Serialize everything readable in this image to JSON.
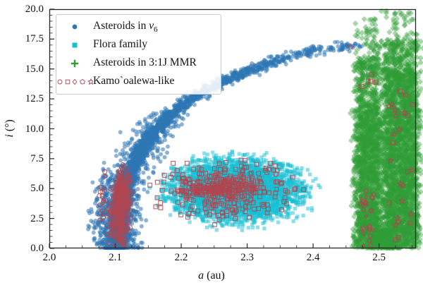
{
  "chart_data": {
    "type": "scatter",
    "title": "",
    "xlabel": {
      "italic": "a",
      "rest": " (au)"
    },
    "ylabel": {
      "italic": "i",
      "rest": " (°)"
    },
    "xlim": [
      2.0,
      2.556
    ],
    "ylim": [
      0,
      20
    ],
    "grid": false,
    "xticks": {
      "values": [
        2.0,
        2.1,
        2.2,
        2.3,
        2.4,
        2.5
      ],
      "labels": [
        "2.0",
        "2.1",
        "2.2",
        "2.3",
        "2.4",
        "2.5"
      ],
      "minor_step": 0.025
    },
    "yticks": {
      "values": [
        0,
        2.5,
        5,
        7.5,
        10,
        12.5,
        15,
        17.5,
        20
      ],
      "labels": [
        "0.0",
        "2.5",
        "5.0",
        "7.5",
        "10.0",
        "12.5",
        "15.0",
        "17.5",
        "20.0"
      ],
      "minor_step": 0.5
    },
    "legend": {
      "position": "upper left",
      "items": [
        {
          "label": "Asteroids in ν6",
          "label_pre": "Asteroids in ",
          "label_symbol": "ν",
          "label_sub": "6",
          "marker": "circle",
          "color": "#2e76b4"
        },
        {
          "label": "Flora family",
          "label_pre": "Flora family",
          "label_symbol": "",
          "label_sub": "",
          "marker": "square",
          "color": "#17bfd4"
        },
        {
          "label": "Asteroids in 3:1J MMR",
          "label_pre": "Asteroids in 3:1J MMR",
          "label_symbol": "",
          "label_sub": "",
          "marker": "plus",
          "color": "#2f9d38"
        },
        {
          "label": "Kamo`oalewa-like",
          "label_pre": "Kamo`oalewa-like",
          "label_symbol": "",
          "label_sub": "",
          "marker": "open-set",
          "color": "#b04550"
        }
      ]
    },
    "series": [
      {
        "name": "Asteroids in ν6",
        "marker": "circle",
        "color": "#2e76b4",
        "alpha": 0.55,
        "size": 3.0,
        "curve_i_a": [
          [
            0,
            2.104
          ],
          [
            2,
            2.107
          ],
          [
            4,
            2.112
          ],
          [
            5,
            2.116
          ],
          [
            6,
            2.121
          ],
          [
            7,
            2.128
          ],
          [
            8,
            2.137
          ],
          [
            9,
            2.149
          ],
          [
            10,
            2.163
          ],
          [
            11,
            2.181
          ],
          [
            12,
            2.203
          ],
          [
            12.5,
            2.216
          ],
          [
            13,
            2.231
          ],
          [
            13.5,
            2.248
          ],
          [
            14,
            2.266
          ],
          [
            14.5,
            2.287
          ],
          [
            15,
            2.31
          ],
          [
            15.5,
            2.336
          ],
          [
            16,
            2.366
          ],
          [
            16.4,
            2.398
          ],
          [
            16.7,
            2.43
          ],
          [
            16.9,
            2.455
          ],
          [
            17,
            2.472
          ]
        ],
        "components": [
          {
            "kind": "curve_band",
            "n": 2400,
            "i0": 0,
            "i1": 17,
            "pow": 1.3,
            "sa": 0.005,
            "si": 0.22
          },
          {
            "kind": "curve_band",
            "n": 750,
            "i0": 0,
            "i1": 11,
            "pow": 1.25,
            "sa": 0.015,
            "si": 0.55
          },
          {
            "kind": "blob",
            "n": 380,
            "cx": 2.096,
            "cy": 2.9,
            "sx": 0.018,
            "sy": 2.0,
            "clip": 2.2
          }
        ]
      },
      {
        "name": "Flora family",
        "marker": "square",
        "color": "#17bfd4",
        "alpha": 0.5,
        "size": 5.2,
        "components": [
          {
            "kind": "blob",
            "n": 3000,
            "cx": 2.283,
            "cy": 4.9,
            "sx": 0.052,
            "sy": 1.35,
            "clip": 2.2
          },
          {
            "kind": "blob",
            "n": 600,
            "cx": 2.283,
            "cy": 4.8,
            "sx": 0.066,
            "sy": 1.7,
            "clip": 2.0
          }
        ]
      },
      {
        "name": "Asteroids in 3:1J MMR",
        "marker": "plus",
        "color": "#2f9d38",
        "alpha": 0.42,
        "size": 7,
        "components": [
          {
            "kind": "vband",
            "n": 1900,
            "a0": 2.466,
            "a1": 2.501,
            "edge": 0.005,
            "zones": [
              [
                0,
                12,
                1.0
              ],
              [
                12,
                16,
                0.5
              ],
              [
                16,
                19.3,
                0.12
              ]
            ]
          },
          {
            "kind": "vband",
            "n": 2950,
            "a0": 2.508,
            "a1": 2.556,
            "edge": 0.005,
            "zones": [
              [
                0,
                15,
                1.0
              ],
              [
                15,
                17.5,
                0.5
              ],
              [
                17.5,
                19.9,
                0.13
              ]
            ]
          },
          {
            "kind": "uniform",
            "n": 220,
            "a0": 2.49,
            "a1": 2.52,
            "i0": 0,
            "i1": 1.6
          }
        ]
      },
      {
        "name": "Kamo`oalewa-like",
        "marker": "open",
        "color": "#b04550",
        "alpha": 0.85,
        "size": 3.0,
        "line_width": 1.1,
        "components": [
          {
            "kind": "blob",
            "n": 170,
            "cx": 2.107,
            "cy": 2.9,
            "sx": 0.008,
            "sy": 1.4,
            "clip": 2.2,
            "marker": "ocircle"
          },
          {
            "kind": "blob",
            "n": 130,
            "cx": 2.112,
            "cy": 4.8,
            "sx": 0.0065,
            "sy": 1.1,
            "clip": 2.2,
            "marker": "ocircle"
          },
          {
            "kind": "blob",
            "n": 70,
            "cx": 2.099,
            "cy": 3.2,
            "sx": 0.014,
            "sy": 1.9,
            "clip": 2.0,
            "marker": "ocircle"
          },
          {
            "kind": "blob",
            "n": 300,
            "cx": 2.268,
            "cy": 5.0,
            "sx": 0.047,
            "sy": 1.2,
            "clip": 2.6,
            "marker": "osquare"
          },
          {
            "kind": "blob",
            "n": 130,
            "cx": 2.252,
            "cy": 4.95,
            "sx": 0.03,
            "sy": 0.3,
            "clip": 2.4,
            "marker": "osquare"
          },
          {
            "kind": "blob",
            "n": 28,
            "cx": 2.481,
            "cy": 2.8,
            "sx": 0.006,
            "sy": 1.4,
            "clip": 2.2,
            "markers": [
              "odiamond",
              "ocircle",
              "opentagon"
            ]
          },
          {
            "kind": "uniform",
            "n": 26,
            "a0": 2.512,
            "a1": 2.553,
            "i0": 0.3,
            "i1": 13,
            "markers": [
              "osquare",
              "ostar"
            ]
          },
          {
            "kind": "uniform",
            "n": 6,
            "a0": 2.47,
            "a1": 2.55,
            "i0": 13,
            "i1": 16.5,
            "markers": [
              "ostar",
              "osquare"
            ]
          },
          {
            "kind": "points",
            "marker": "opentagon",
            "pts": [
              [
                2.457,
                16.85
              ]
            ]
          }
        ]
      }
    ]
  }
}
